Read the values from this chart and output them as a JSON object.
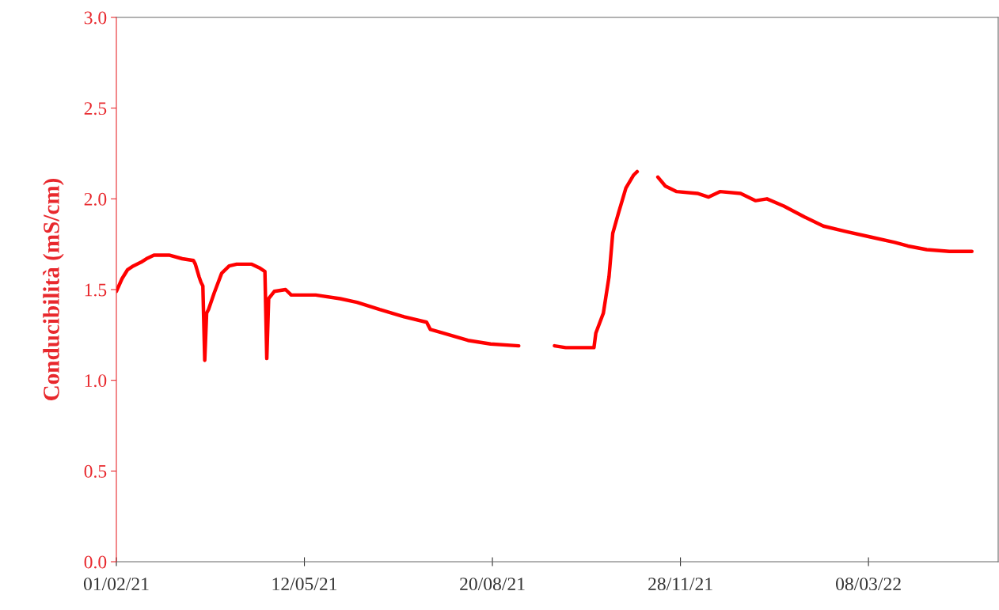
{
  "chart_data": {
    "type": "line",
    "ylabel": "Conducibilità (mS/cm)",
    "x": [
      "2021-02-01",
      "2021-02-04",
      "2021-02-07",
      "2021-02-10",
      "2021-02-14",
      "2021-02-17",
      "2021-02-21",
      "2021-03-01",
      "2021-03-08",
      "2021-03-14",
      "2021-03-15",
      "2021-03-17",
      "2021-03-18",
      "2021-03-19",
      "2021-03-20",
      "2021-03-21",
      "2021-03-22",
      "2021-03-25",
      "2021-03-29",
      "2021-04-02",
      "2021-04-06",
      "2021-04-14",
      "2021-04-18",
      "2021-04-21",
      "2021-04-22",
      "2021-04-23",
      "2021-04-26",
      "2021-05-02",
      "2021-05-05",
      "2021-05-18",
      "2021-05-31",
      "2021-06-09",
      "2021-06-21",
      "2021-07-04",
      "2021-07-16",
      "2021-07-18",
      "2021-07-25",
      "2021-08-07",
      "2021-08-19",
      "2021-09-03",
      "2021-09-15",
      "2021-09-22",
      "2021-09-28",
      "2021-10-09",
      "2021-10-13",
      "2021-10-14",
      "2021-10-18",
      "2021-10-21",
      "2021-10-23",
      "2021-10-26",
      "2021-10-30",
      "2021-11-03",
      "2021-11-05",
      "2021-11-10",
      "2021-11-16",
      "2021-11-20",
      "2021-11-26",
      "2021-12-07",
      "2021-12-13",
      "2021-12-19",
      "2021-12-30",
      "2022-01-07",
      "2022-01-13",
      "2022-01-22",
      "2022-02-02",
      "2022-02-12",
      "2022-02-24",
      "2022-03-09",
      "2022-03-22",
      "2022-03-29",
      "2022-04-08",
      "2022-04-20",
      "2022-05-02"
    ],
    "series": [
      {
        "color": "#ff0000",
        "values": [
          1.49,
          1.56,
          1.61,
          1.63,
          1.65,
          1.67,
          1.69,
          1.69,
          1.67,
          1.66,
          1.64,
          1.57,
          1.54,
          1.52,
          1.11,
          1.37,
          1.39,
          1.48,
          1.59,
          1.63,
          1.64,
          1.64,
          1.62,
          1.6,
          1.12,
          1.45,
          1.49,
          1.5,
          1.47,
          1.47,
          1.45,
          1.43,
          1.39,
          1.35,
          1.32,
          1.28,
          1.26,
          1.22,
          1.2,
          1.19,
          null,
          1.19,
          1.18,
          1.18,
          1.18,
          1.26,
          1.37,
          1.57,
          1.81,
          1.92,
          2.06,
          2.13,
          2.15,
          null,
          2.12,
          2.07,
          2.04,
          2.03,
          2.01,
          2.04,
          2.03,
          1.99,
          2.0,
          1.96,
          1.9,
          1.85,
          1.82,
          1.79,
          1.76,
          1.74,
          1.72,
          1.71,
          1.71
        ]
      }
    ],
    "xlim": [
      "2021-02-01",
      "2022-05-16"
    ],
    "xticks": [
      {
        "value": "2021-02-01",
        "label": "01/02/21"
      },
      {
        "value": "2021-05-12",
        "label": "12/05/21"
      },
      {
        "value": "2021-08-20",
        "label": "20/08/21"
      },
      {
        "value": "2021-11-28",
        "label": "28/11/21"
      },
      {
        "value": "2022-03-08",
        "label": "08/03/22"
      }
    ],
    "ylim": [
      0,
      3.0
    ],
    "yticks": [
      {
        "value": 0,
        "label": "0.0"
      },
      {
        "value": 0.5,
        "label": "0.5"
      },
      {
        "value": 1.0,
        "label": "1.0"
      },
      {
        "value": 1.5,
        "label": "1.5"
      },
      {
        "value": 2.0,
        "label": "2.0"
      },
      {
        "value": 2.5,
        "label": "2.5"
      },
      {
        "value": 3.0,
        "label": "3.0"
      }
    ],
    "grid": false,
    "legend": false,
    "marker": "none",
    "line_style": "solid"
  }
}
